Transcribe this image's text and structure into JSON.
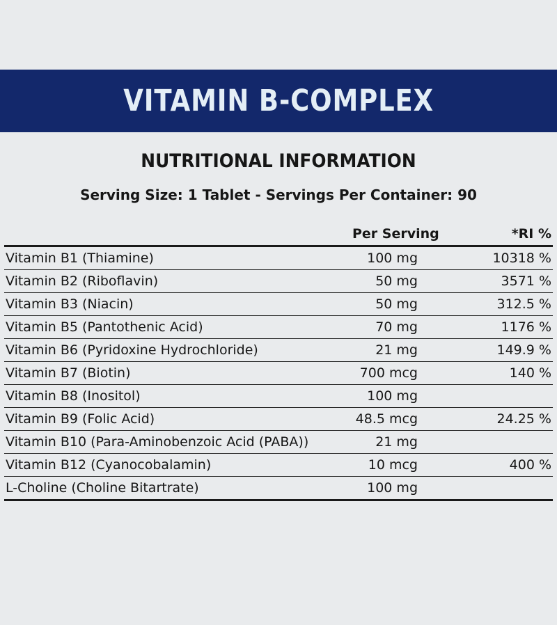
{
  "banner": {
    "title": "VITAMIN B-COMPLEX"
  },
  "heading": "NUTRITIONAL INFORMATION",
  "serving": {
    "label": "Serving Size:",
    "text": " 1 Tablet - Servings Per Container: 90"
  },
  "table": {
    "headers": {
      "per_serving": "Per Serving",
      "ri": "*RI %"
    },
    "rows": [
      {
        "name": "Vitamin B1 (Thiamine)",
        "per_serving": "100 mg",
        "ri": "10318 %"
      },
      {
        "name": "Vitamin B2 (Riboflavin)",
        "per_serving": "50 mg",
        "ri": "3571 %"
      },
      {
        "name": "Vitamin B3 (Niacin)",
        "per_serving": "50 mg",
        "ri": "312.5 %"
      },
      {
        "name": "Vitamin B5 (Pantothenic Acid)",
        "per_serving": "70 mg",
        "ri": "1176 %"
      },
      {
        "name": "Vitamin B6 (Pyridoxine Hydrochloride)",
        "per_serving": "21 mg",
        "ri": "149.9 %"
      },
      {
        "name": "Vitamin B7 (Biotin)",
        "per_serving": "700 mcg",
        "ri": "140 %"
      },
      {
        "name": "Vitamin B8 (Inositol)",
        "per_serving": "100 mg",
        "ri": ""
      },
      {
        "name": "Vitamin B9 (Folic Acid)",
        "per_serving": "48.5 mcg",
        "ri": "24.25 %"
      },
      {
        "name": "Vitamin B10 (Para-Aminobenzoic Acid (PABA))",
        "per_serving": "21 mg",
        "ri": ""
      },
      {
        "name": "Vitamin B12 (Cyanocobalamin)",
        "per_serving": "10 mcg",
        "ri": "400 %"
      },
      {
        "name": "L-Choline (Choline Bitartrate)",
        "per_serving": "100 mg",
        "ri": ""
      }
    ]
  }
}
